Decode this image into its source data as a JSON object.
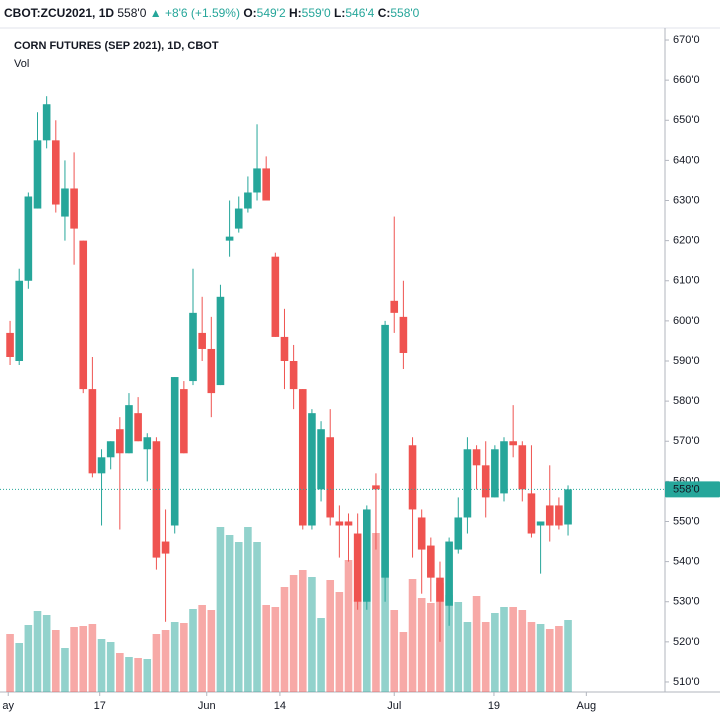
{
  "chart_data": {
    "type": "candlestick",
    "header": {
      "symbol": "CBOT:ZCU2021, 1D",
      "last": "558'0",
      "arrow": "▲",
      "change": "+8'6 (+1.59%)",
      "o_label": "O:",
      "o": "549'2",
      "h_label": "H:",
      "h": "559'0",
      "l_label": "L:",
      "l": "546'4",
      "c_label": "C:",
      "c": "558'0"
    },
    "title": "CORN FUTURES (SEP 2021), 1D, CBOT",
    "volume_label": "Vol",
    "x": [
      0,
      1,
      2,
      3,
      4,
      5,
      6,
      7,
      8,
      9,
      10,
      11,
      12,
      13,
      14,
      15,
      16,
      17,
      18,
      19,
      20,
      21,
      22,
      23,
      24,
      25,
      26,
      27,
      28,
      29,
      30,
      31,
      32,
      33,
      34,
      35,
      36,
      37,
      38,
      39,
      40,
      41,
      42,
      43,
      44,
      45,
      46,
      47,
      48,
      49,
      50,
      51,
      52,
      53,
      54,
      55,
      56,
      57,
      58,
      59,
      60,
      61
    ],
    "open": [
      597,
      590,
      610,
      628,
      645,
      645,
      626,
      633,
      620,
      583,
      562,
      566,
      573,
      567,
      577,
      568,
      570,
      545,
      549,
      583,
      585,
      597,
      593,
      584,
      620,
      623,
      628,
      632,
      638,
      616,
      596,
      590,
      583,
      549,
      558,
      571,
      550,
      550,
      547,
      530,
      559,
      536,
      605,
      601,
      569,
      551,
      544,
      536,
      529,
      543,
      551,
      568,
      564,
      556,
      557,
      570,
      569,
      557,
      549,
      554,
      554,
      549.25
    ],
    "high": [
      600,
      613,
      632,
      652,
      656,
      650,
      640,
      642,
      620,
      591,
      568,
      570,
      576,
      582,
      581,
      572,
      571,
      553,
      586,
      585,
      613,
      606,
      601,
      609,
      630,
      631,
      636,
      649,
      641,
      617,
      603,
      594,
      583,
      578,
      575,
      578,
      554,
      552,
      552,
      554,
      562,
      600,
      626,
      610,
      571,
      553,
      546,
      540,
      546,
      556,
      571,
      569,
      570,
      569,
      571,
      579,
      570,
      569,
      550,
      564,
      556,
      559
    ],
    "low": [
      589,
      589,
      608,
      628,
      643,
      627,
      620,
      614,
      582,
      561,
      549,
      563,
      548,
      567,
      570,
      560,
      538,
      525,
      547,
      567,
      584,
      590,
      576,
      584,
      616,
      622,
      627,
      630,
      630,
      596,
      583,
      578,
      548,
      548,
      555,
      549,
      541,
      540,
      528,
      528,
      543,
      530,
      597,
      588,
      541,
      532,
      530,
      520,
      524,
      542,
      547,
      558,
      551,
      556,
      555,
      566,
      555,
      546,
      537,
      545,
      548,
      546.5
    ],
    "close": [
      591,
      610,
      631,
      645,
      654,
      629,
      633,
      623,
      583,
      562,
      566,
      570,
      567,
      579,
      570,
      571,
      541,
      542,
      586,
      567,
      602,
      593,
      582,
      606,
      621,
      628,
      632,
      638,
      630,
      596,
      590,
      583,
      549,
      577,
      573,
      551,
      549,
      549,
      530,
      553,
      558,
      599,
      602,
      592,
      553,
      543,
      536,
      530,
      545,
      551,
      568,
      564,
      556,
      568,
      570,
      569,
      558,
      547,
      550,
      549,
      549,
      558
    ],
    "volume": [
      58,
      49,
      67,
      81,
      77,
      62,
      44,
      65,
      66,
      68,
      53,
      50,
      39,
      35,
      34,
      33,
      58,
      62,
      70,
      69,
      83,
      87,
      82,
      165,
      157,
      150,
      165,
      150,
      87,
      85,
      105,
      117,
      122,
      115,
      74,
      112,
      100,
      132,
      92,
      122,
      159,
      142,
      82,
      60,
      113,
      94,
      89,
      109,
      97,
      90,
      70,
      96,
      70,
      79,
      85,
      85,
      82,
      70,
      68,
      63,
      66,
      72
    ],
    "vlim": [
      0,
      662
    ],
    "up_color": "#26a69a",
    "down_color": "#ef5350",
    "xlim": [
      -1.1,
      71.6
    ],
    "xticks": [
      {
        "value": -0.2,
        "label": "ay"
      },
      {
        "value": 9.8,
        "label": "17"
      },
      {
        "value": 21.5,
        "label": "Jun"
      },
      {
        "value": 29.5,
        "label": "14"
      },
      {
        "value": 42,
        "label": "Jul"
      },
      {
        "value": 52.9,
        "label": "19"
      },
      {
        "value": 63,
        "label": "Aug"
      }
    ],
    "ylim": [
      507.5,
      672.5
    ],
    "yticks": [
      {
        "value": 510,
        "label": "510'0"
      },
      {
        "value": 520,
        "label": "520'0"
      },
      {
        "value": 530,
        "label": "530'0"
      },
      {
        "value": 540,
        "label": "540'0"
      },
      {
        "value": 550,
        "label": "550'0"
      },
      {
        "value": 560,
        "label": "560'0"
      },
      {
        "value": 570,
        "label": "570'0"
      },
      {
        "value": 580,
        "label": "580'0"
      },
      {
        "value": 590,
        "label": "590'0"
      },
      {
        "value": 600,
        "label": "600'0"
      },
      {
        "value": 610,
        "label": "610'0"
      },
      {
        "value": 620,
        "label": "620'0"
      },
      {
        "value": 630,
        "label": "630'0"
      },
      {
        "value": 640,
        "label": "640'0"
      },
      {
        "value": 650,
        "label": "650'0"
      },
      {
        "value": 660,
        "label": "660'0"
      },
      {
        "value": 670,
        "label": "670'0"
      }
    ],
    "last_price": {
      "value": 558,
      "label": "558'0"
    }
  }
}
